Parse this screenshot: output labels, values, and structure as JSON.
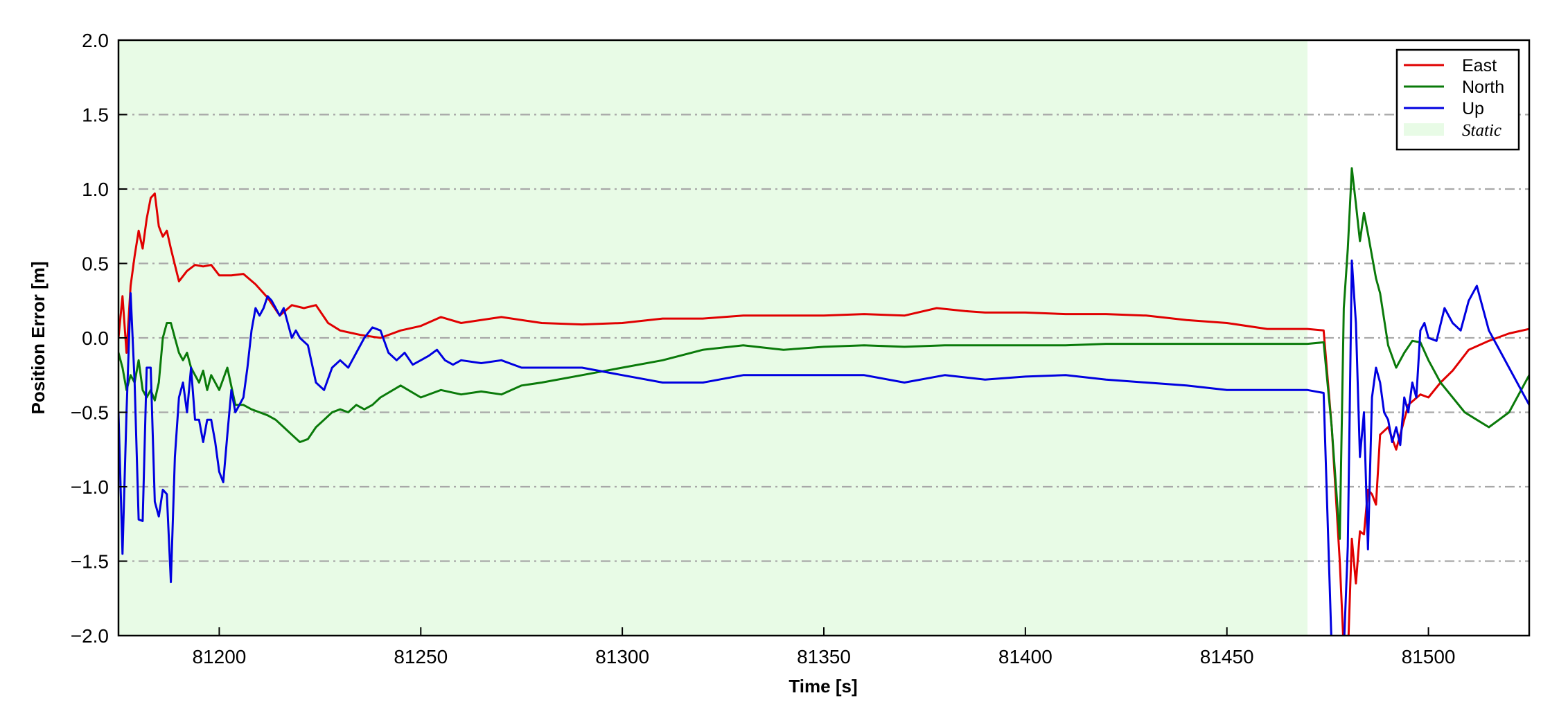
{
  "chart_data": {
    "type": "line",
    "title": "",
    "xlabel": "Time [s]",
    "ylabel": "Position Error [m]",
    "xlim": [
      81175,
      81525
    ],
    "ylim": [
      -2.0,
      2.0
    ],
    "xticks": [
      81200,
      81250,
      81300,
      81350,
      81400,
      81450,
      81500
    ],
    "xtick_labels": [
      "81200",
      "81250",
      "81300",
      "81350",
      "81400",
      "81450",
      "81500"
    ],
    "yticks": [
      2.0,
      1.5,
      1.0,
      0.5,
      0.0,
      -0.5,
      -1.0,
      -1.5,
      -2.0
    ],
    "ytick_labels": [
      "2.0",
      "1.5",
      "1.0",
      "0.5",
      "0.0",
      "−0.5",
      "−1.0",
      "−1.5",
      "−2.0"
    ],
    "grid": "horizontal dash-dot",
    "legend_position": "top-right",
    "shaded_region": {
      "label": "Static",
      "x_start": 81175,
      "x_end": 81470,
      "color": "#e8fbe6"
    },
    "series": [
      {
        "name": "East",
        "color": "#e00000",
        "x": [
          81175,
          81176,
          81177,
          81178,
          81179,
          81180,
          81181,
          81182,
          81183,
          81184,
          81185,
          81186,
          81187,
          81188,
          81190,
          81192,
          81194,
          81196,
          81198,
          81200,
          81203,
          81206,
          81209,
          81212,
          81215,
          81218,
          81221,
          81224,
          81227,
          81230,
          81235,
          81240,
          81245,
          81250,
          81255,
          81260,
          81270,
          81280,
          81290,
          81300,
          81310,
          81320,
          81330,
          81340,
          81350,
          81360,
          81370,
          81378,
          81385,
          81390,
          81400,
          81410,
          81420,
          81430,
          81440,
          81450,
          81460,
          81470,
          81474,
          81476,
          81478,
          81479,
          81480,
          81481,
          81482,
          81483,
          81484,
          81485,
          81486,
          81487,
          81488,
          81490,
          81492,
          81495,
          81498,
          81500,
          81503,
          81506,
          81510,
          81515,
          81520,
          81525
        ],
        "y": [
          0.0,
          0.28,
          -0.1,
          0.35,
          0.55,
          0.72,
          0.6,
          0.8,
          0.94,
          0.97,
          0.75,
          0.68,
          0.72,
          0.6,
          0.38,
          0.45,
          0.49,
          0.48,
          0.49,
          0.42,
          0.42,
          0.43,
          0.36,
          0.27,
          0.15,
          0.22,
          0.2,
          0.22,
          0.1,
          0.05,
          0.02,
          0.0,
          0.05,
          0.08,
          0.14,
          0.1,
          0.14,
          0.1,
          0.09,
          0.1,
          0.13,
          0.13,
          0.15,
          0.15,
          0.15,
          0.16,
          0.15,
          0.2,
          0.18,
          0.17,
          0.17,
          0.16,
          0.16,
          0.15,
          0.12,
          0.1,
          0.06,
          0.06,
          0.05,
          -0.6,
          -1.5,
          -2.1,
          -2.15,
          -1.35,
          -1.65,
          -1.3,
          -1.32,
          -1.02,
          -1.05,
          -1.12,
          -0.65,
          -0.6,
          -0.75,
          -0.45,
          -0.38,
          -0.4,
          -0.3,
          -0.22,
          -0.08,
          -0.02,
          0.03,
          0.06
        ]
      },
      {
        "name": "North",
        "color": "#0a7a0a",
        "x": [
          81175,
          81176,
          81177,
          81178,
          81179,
          81180,
          81181,
          81182,
          81183,
          81184,
          81185,
          81186,
          81187,
          81188,
          81189,
          81190,
          81191,
          81192,
          81193,
          81194,
          81195,
          81196,
          81197,
          81198,
          81199,
          81200,
          81202,
          81204,
          81206,
          81208,
          81210,
          81212,
          81214,
          81216,
          81218,
          81220,
          81222,
          81224,
          81226,
          81228,
          81230,
          81232,
          81234,
          81236,
          81238,
          81240,
          81245,
          81250,
          81255,
          81260,
          81265,
          81270,
          81275,
          81280,
          81290,
          81300,
          81310,
          81320,
          81330,
          81340,
          81350,
          81360,
          81370,
          81380,
          81390,
          81400,
          81410,
          81420,
          81430,
          81440,
          81450,
          81460,
          81470,
          81474,
          81476,
          81478,
          81479,
          81480,
          81481,
          81482,
          81483,
          81484,
          81485,
          81486,
          81487,
          81488,
          81490,
          81492,
          81494,
          81496,
          81498,
          81500,
          81503,
          81506,
          81509,
          81512,
          81515,
          81520,
          81525
        ],
        "y": [
          -0.1,
          -0.2,
          -0.35,
          -0.25,
          -0.3,
          -0.15,
          -0.35,
          -0.4,
          -0.35,
          -0.42,
          -0.3,
          0.0,
          0.1,
          0.1,
          0.0,
          -0.1,
          -0.15,
          -0.1,
          -0.2,
          -0.25,
          -0.3,
          -0.22,
          -0.35,
          -0.25,
          -0.3,
          -0.35,
          -0.2,
          -0.45,
          -0.45,
          -0.48,
          -0.5,
          -0.52,
          -0.55,
          -0.6,
          -0.65,
          -0.7,
          -0.68,
          -0.6,
          -0.55,
          -0.5,
          -0.48,
          -0.5,
          -0.45,
          -0.48,
          -0.45,
          -0.4,
          -0.32,
          -0.4,
          -0.35,
          -0.38,
          -0.36,
          -0.38,
          -0.32,
          -0.3,
          -0.25,
          -0.2,
          -0.15,
          -0.08,
          -0.05,
          -0.08,
          -0.06,
          -0.05,
          -0.06,
          -0.05,
          -0.05,
          -0.05,
          -0.05,
          -0.04,
          -0.04,
          -0.04,
          -0.04,
          -0.04,
          -0.04,
          -0.03,
          -0.6,
          -1.35,
          0.2,
          0.6,
          1.14,
          0.9,
          0.65,
          0.84,
          0.7,
          0.55,
          0.4,
          0.3,
          -0.05,
          -0.2,
          -0.1,
          -0.02,
          -0.03,
          -0.15,
          -0.3,
          -0.4,
          -0.5,
          -0.55,
          -0.6,
          -0.5,
          -0.25
        ]
      },
      {
        "name": "Up",
        "color": "#0000e0",
        "x": [
          81175,
          81176,
          81177,
          81178,
          81179,
          81180,
          81181,
          81182,
          81183,
          81184,
          81185,
          81186,
          81187,
          81188,
          81189,
          81190,
          81191,
          81192,
          81193,
          81194,
          81195,
          81196,
          81197,
          81198,
          81199,
          81200,
          81201,
          81202,
          81203,
          81204,
          81205,
          81206,
          81207,
          81208,
          81209,
          81210,
          81211,
          81212,
          81213,
          81214,
          81215,
          81216,
          81217,
          81218,
          81219,
          81220,
          81222,
          81224,
          81226,
          81228,
          81230,
          81232,
          81234,
          81236,
          81238,
          81240,
          81242,
          81244,
          81246,
          81248,
          81250,
          81252,
          81254,
          81256,
          81258,
          81260,
          81265,
          81270,
          81275,
          81280,
          81290,
          81300,
          81310,
          81320,
          81330,
          81340,
          81350,
          81360,
          81370,
          81380,
          81390,
          81400,
          81410,
          81420,
          81430,
          81440,
          81450,
          81460,
          81470,
          81474,
          81476,
          81477,
          81478,
          81479,
          81480,
          81481,
          81482,
          81483,
          81484,
          81485,
          81486,
          81487,
          81488,
          81489,
          81490,
          81491,
          81492,
          81493,
          81494,
          81495,
          81496,
          81497,
          81498,
          81499,
          81500,
          81502,
          81504,
          81506,
          81508,
          81510,
          81512,
          81515,
          81518,
          81520,
          81525
        ],
        "y": [
          -0.5,
          -1.45,
          -0.5,
          0.3,
          -0.3,
          -1.22,
          -1.23,
          -0.2,
          -0.2,
          -1.1,
          -1.2,
          -1.02,
          -1.05,
          -1.64,
          -0.8,
          -0.4,
          -0.3,
          -0.5,
          -0.2,
          -0.55,
          -0.55,
          -0.7,
          -0.55,
          -0.55,
          -0.7,
          -0.9,
          -0.97,
          -0.65,
          -0.35,
          -0.5,
          -0.45,
          -0.4,
          -0.2,
          0.05,
          0.2,
          0.15,
          0.2,
          0.28,
          0.25,
          0.2,
          0.15,
          0.2,
          0.1,
          0.0,
          0.05,
          0.0,
          -0.05,
          -0.3,
          -0.35,
          -0.2,
          -0.15,
          -0.2,
          -0.1,
          0.0,
          0.07,
          0.05,
          -0.1,
          -0.15,
          -0.1,
          -0.18,
          -0.15,
          -0.12,
          -0.08,
          -0.15,
          -0.18,
          -0.15,
          -0.17,
          -0.15,
          -0.2,
          -0.2,
          -0.2,
          -0.25,
          -0.3,
          -0.3,
          -0.25,
          -0.25,
          -0.25,
          -0.25,
          -0.3,
          -0.25,
          -0.28,
          -0.26,
          -0.25,
          -0.28,
          -0.3,
          -0.32,
          -0.35,
          -0.35,
          -0.35,
          -0.37,
          -2.1,
          -2.2,
          -2.2,
          -2.1,
          -1.4,
          0.52,
          0.1,
          -0.8,
          -0.5,
          -1.42,
          -0.4,
          -0.2,
          -0.3,
          -0.5,
          -0.55,
          -0.7,
          -0.6,
          -0.72,
          -0.4,
          -0.5,
          -0.3,
          -0.4,
          0.05,
          0.1,
          0.0,
          -0.02,
          0.2,
          0.1,
          0.05,
          0.25,
          0.35,
          0.05,
          -0.1,
          -0.2,
          -0.45
        ]
      }
    ]
  }
}
